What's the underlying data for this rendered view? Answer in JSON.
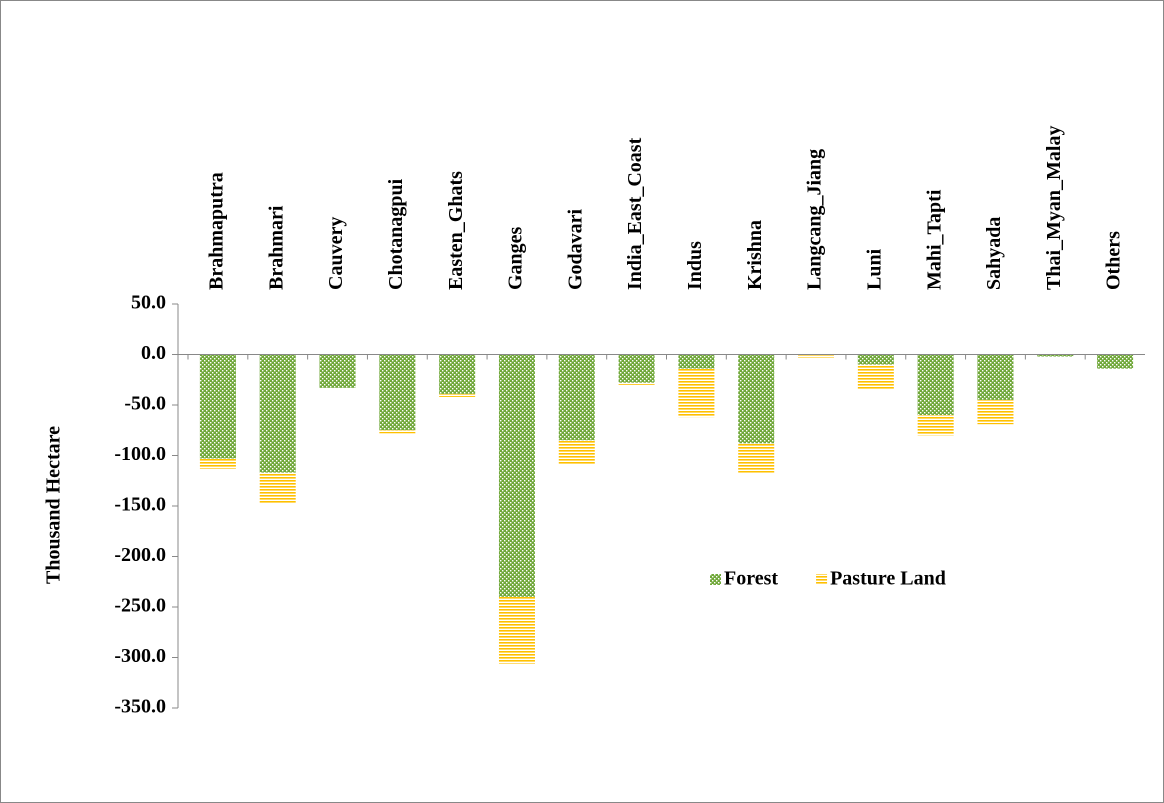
{
  "chart_data": {
    "type": "bar",
    "stacked": true,
    "y_label": "Thousand Hectare",
    "categories": [
      "Brahmaputra",
      "Brahmari",
      "Cauvery",
      "Chotanagpui",
      "Easten_Ghats",
      "Ganges",
      "Godavari",
      "India_East_Coast",
      "Indus",
      "Krishna",
      "Langcang_Jiang",
      "Luni",
      "Mahi_Tapti",
      "Sahyada",
      "Thai_Myan_Malay",
      "Others"
    ],
    "series": [
      {
        "name": "Forest",
        "color": "#70a83a",
        "values": [
          -103,
          -117,
          -33,
          -75,
          -39,
          -240,
          -85,
          -28,
          -14,
          -88,
          0,
          -10,
          -60,
          -45,
          -2,
          -14
        ]
      },
      {
        "name": "Pasture Land",
        "color": "#ffc000",
        "values": [
          -10,
          -31,
          0,
          -3,
          -3,
          -66,
          -24,
          -2,
          -48,
          -29,
          -3,
          -25,
          -20,
          -24,
          0,
          0
        ]
      }
    ],
    "ylim": [
      -350,
      50
    ],
    "yticks": [
      {
        "value": 50,
        "label": "50.0"
      },
      {
        "value": 0,
        "label": "0.0"
      },
      {
        "value": -50,
        "label": "-50.0"
      },
      {
        "value": -100,
        "label": "-100.0"
      },
      {
        "value": -150,
        "label": "-150.0"
      },
      {
        "value": -200,
        "label": "-200.0"
      },
      {
        "value": -250,
        "label": "-250.0"
      },
      {
        "value": -300,
        "label": "-300.0"
      },
      {
        "value": -350,
        "label": "-350.0"
      }
    ]
  }
}
